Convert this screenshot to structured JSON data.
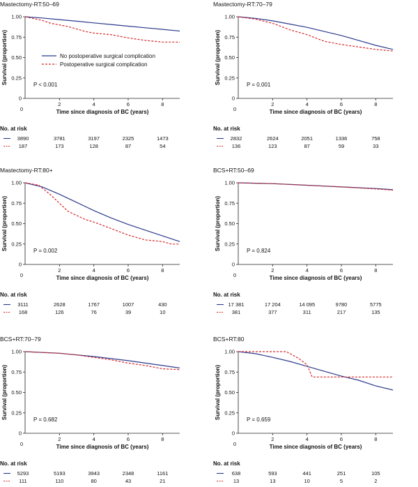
{
  "figure": {
    "y_axis_label": "Survival (proportion)",
    "x_axis_label": "Time since diagnosis of BC (years)",
    "risk_table_title": "No. at risk",
    "colors": {
      "no_complication": "#2b3a8c",
      "complication": "#d62728"
    },
    "legend": {
      "placement": "panel 1, middle",
      "entries": [
        {
          "label": "No postoperative surgical complication",
          "color": "#2b3a8c",
          "style": "solid"
        },
        {
          "label": "Postoperative surgical complication",
          "color": "#d62728",
          "style": "dashed"
        }
      ]
    }
  },
  "chart_data": [
    {
      "type": "line",
      "title": "Mastectomy-RT:50–69",
      "p_value": "P < 0.001",
      "xlim": [
        0,
        9
      ],
      "ylim": [
        0,
        1
      ],
      "x_ticks": [
        0,
        2,
        4,
        6,
        8
      ],
      "y_ticks": [
        "0",
        "0.25",
        "0.50",
        "0.75",
        "1.00"
      ],
      "series": [
        {
          "key": "no_complication",
          "x": [
            0,
            1,
            2,
            3,
            4,
            5,
            6,
            7,
            8,
            9
          ],
          "y": [
            1.0,
            0.985,
            0.965,
            0.945,
            0.925,
            0.905,
            0.885,
            0.865,
            0.845,
            0.825
          ]
        },
        {
          "key": "complication",
          "x": [
            0,
            1,
            1.5,
            2,
            2.5,
            3,
            3.5,
            4,
            5,
            6,
            7,
            8,
            9
          ],
          "y": [
            1.0,
            0.955,
            0.92,
            0.9,
            0.88,
            0.85,
            0.82,
            0.8,
            0.78,
            0.74,
            0.71,
            0.69,
            0.69
          ]
        }
      ],
      "risk_table": {
        "times": [
          0,
          2,
          4,
          6,
          8
        ],
        "rows": [
          {
            "key": "no_complication",
            "values": [
              "3890",
              "3781",
              "3197",
              "2325",
              "1473"
            ]
          },
          {
            "key": "complication",
            "values": [
              "187",
              "173",
              "128",
              "87",
              "54"
            ]
          }
        ]
      }
    },
    {
      "type": "line",
      "title": "Mastectomy-RT:70–79",
      "p_value": "P = 0.001",
      "xlim": [
        0,
        9
      ],
      "ylim": [
        0,
        1
      ],
      "x_ticks": [
        0,
        2,
        4,
        6,
        8
      ],
      "y_ticks": [
        "0",
        "0.25",
        "0.50",
        "0.75",
        "1.00"
      ],
      "series": [
        {
          "key": "no_complication",
          "x": [
            0,
            1,
            2,
            3,
            4,
            5,
            6,
            7,
            8,
            9
          ],
          "y": [
            1.0,
            0.98,
            0.95,
            0.91,
            0.87,
            0.82,
            0.77,
            0.71,
            0.65,
            0.6
          ]
        },
        {
          "key": "complication",
          "x": [
            0,
            1,
            2,
            2.5,
            3,
            4,
            5,
            6,
            7,
            8,
            9
          ],
          "y": [
            1.0,
            0.97,
            0.92,
            0.88,
            0.84,
            0.78,
            0.7,
            0.66,
            0.63,
            0.6,
            0.58
          ]
        }
      ],
      "risk_table": {
        "times": [
          0,
          2,
          4,
          6,
          8
        ],
        "rows": [
          {
            "key": "no_complication",
            "values": [
              "2832",
              "2624",
              "2051",
              "1336",
              "758"
            ]
          },
          {
            "key": "complication",
            "values": [
              "136",
              "123",
              "87",
              "59",
              "33"
            ]
          }
        ]
      }
    },
    {
      "type": "line",
      "title": "Mastectomy-RT:80+",
      "p_value": "P = 0.002",
      "xlim": [
        0,
        9
      ],
      "ylim": [
        0,
        1
      ],
      "x_ticks": [
        0,
        2,
        4,
        6,
        8
      ],
      "y_ticks": [
        "0",
        "0.25",
        "0.50",
        "0.75",
        "1.00"
      ],
      "series": [
        {
          "key": "no_complication",
          "x": [
            0,
            1,
            2,
            3,
            4,
            5,
            6,
            7,
            8,
            9
          ],
          "y": [
            1.0,
            0.95,
            0.86,
            0.76,
            0.66,
            0.57,
            0.49,
            0.42,
            0.35,
            0.28
          ]
        },
        {
          "key": "complication",
          "x": [
            0,
            0.8,
            1.5,
            2,
            2.5,
            3,
            3.5,
            4,
            5,
            6,
            7,
            8,
            8.5,
            9
          ],
          "y": [
            1.0,
            0.97,
            0.85,
            0.75,
            0.65,
            0.6,
            0.55,
            0.52,
            0.44,
            0.36,
            0.3,
            0.28,
            0.25,
            0.25
          ]
        }
      ],
      "risk_table": {
        "times": [
          0,
          2,
          4,
          6,
          8
        ],
        "rows": [
          {
            "key": "no_complication",
            "values": [
              "3111",
              "2628",
              "1767",
              "1007",
              "430"
            ]
          },
          {
            "key": "complication",
            "values": [
              "168",
              "126",
              "76",
              "39",
              "10"
            ]
          }
        ]
      }
    },
    {
      "type": "line",
      "title": "BCS+RT:50–69",
      "p_value": "P = 0.824",
      "xlim": [
        0,
        9
      ],
      "ylim": [
        0,
        1
      ],
      "x_ticks": [
        0,
        2,
        4,
        6,
        8
      ],
      "y_ticks": [
        "0",
        "0.25",
        "0.50",
        "0.75",
        "1.00"
      ],
      "series": [
        {
          "key": "no_complication",
          "x": [
            0,
            2,
            4,
            6,
            8,
            9
          ],
          "y": [
            1.0,
            0.99,
            0.97,
            0.95,
            0.93,
            0.915
          ]
        },
        {
          "key": "complication",
          "x": [
            0,
            2,
            4,
            6,
            8,
            9
          ],
          "y": [
            1.0,
            0.99,
            0.97,
            0.95,
            0.925,
            0.91
          ]
        }
      ],
      "risk_table": {
        "times": [
          0,
          2,
          4,
          6,
          8
        ],
        "rows": [
          {
            "key": "no_complication",
            "values": [
              "17 381",
              "17 204",
              "14 095",
              "9780",
              "5775"
            ]
          },
          {
            "key": "complication",
            "values": [
              "381",
              "377",
              "311",
              "217",
              "135"
            ]
          }
        ]
      }
    },
    {
      "type": "line",
      "title": "BCS+RT:70–79",
      "p_value": "P = 0.682",
      "xlim": [
        0,
        9
      ],
      "ylim": [
        0,
        1
      ],
      "x_ticks": [
        0,
        2,
        4,
        6,
        8
      ],
      "y_ticks": [
        "0",
        "0.25",
        "0.50",
        "0.75",
        "1.00"
      ],
      "series": [
        {
          "key": "no_complication",
          "x": [
            0,
            2,
            4,
            6,
            8,
            9
          ],
          "y": [
            1.0,
            0.98,
            0.94,
            0.89,
            0.83,
            0.8
          ]
        },
        {
          "key": "complication",
          "x": [
            0,
            2,
            3,
            4,
            5,
            6,
            7,
            8,
            9
          ],
          "y": [
            1.0,
            0.98,
            0.96,
            0.93,
            0.9,
            0.86,
            0.83,
            0.79,
            0.78
          ]
        }
      ],
      "risk_table": {
        "times": [
          0,
          2,
          4,
          6,
          8
        ],
        "rows": [
          {
            "key": "no_complication",
            "values": [
              "5293",
              "5193",
              "3943",
              "2348",
              "1161"
            ]
          },
          {
            "key": "complication",
            "values": [
              "111",
              "110",
              "80",
              "43",
              "21"
            ]
          }
        ]
      }
    },
    {
      "type": "line",
      "title": "BCS+RT:80",
      "p_value": "P = 0.659",
      "xlim": [
        0,
        9
      ],
      "ylim": [
        0,
        1
      ],
      "x_ticks": [
        0,
        2,
        4,
        6,
        8
      ],
      "y_ticks": [
        "0",
        "0.25",
        "0.50",
        "0.75",
        "1.00"
      ],
      "series": [
        {
          "key": "no_complication",
          "x": [
            0,
            1,
            2,
            3,
            4,
            5,
            6,
            7,
            8,
            9
          ],
          "y": [
            1.0,
            0.975,
            0.93,
            0.88,
            0.82,
            0.76,
            0.7,
            0.65,
            0.58,
            0.53
          ]
        },
        {
          "key": "complication",
          "x": [
            0,
            2.8,
            3.5,
            4.0,
            4.3,
            9
          ],
          "y": [
            1.0,
            1.0,
            0.92,
            0.84,
            0.69,
            0.69
          ]
        }
      ],
      "risk_table": {
        "times": [
          0,
          2,
          4,
          6,
          8
        ],
        "rows": [
          {
            "key": "no_complication",
            "values": [
              "638",
              "593",
              "441",
              "251",
              "105"
            ]
          },
          {
            "key": "complication",
            "values": [
              "13",
              "13",
              "10",
              "5",
              "2"
            ]
          }
        ]
      }
    }
  ]
}
